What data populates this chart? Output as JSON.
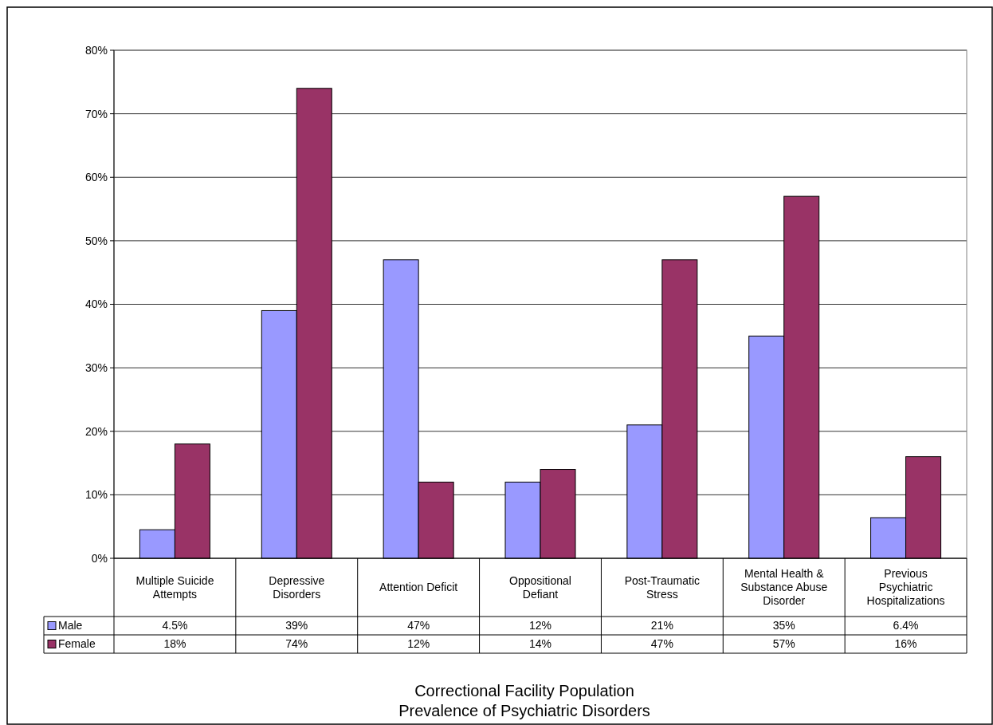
{
  "chart_data": {
    "type": "bar",
    "title": "Correctional Facility Population\nPrevalence of Psychiatric Disorders",
    "categories": [
      "Multiple Suicide Attempts",
      "Depressive Disorders",
      "Attention Deficit",
      "Oppositional Defiant",
      "Post-Traumatic Stress",
      "Mental Health & Substance Abuse Disorder",
      "Previous Psychiatric Hospitalizations"
    ],
    "series": [
      {
        "name": "Male",
        "color": "#9999ff",
        "values": [
          4.5,
          39,
          47,
          12,
          21,
          35,
          6.4
        ],
        "value_labels": [
          "4.5%",
          "39%",
          "47%",
          "12%",
          "21%",
          "35%",
          "6.4%"
        ]
      },
      {
        "name": "Female",
        "color": "#993366",
        "values": [
          18,
          74,
          12,
          14,
          47,
          57,
          16
        ],
        "value_labels": [
          "18%",
          "74%",
          "12%",
          "14%",
          "47%",
          "57%",
          "16%"
        ]
      }
    ],
    "ylim": [
      0,
      80
    ],
    "yticks": [
      {
        "value": 0,
        "label": "0%"
      },
      {
        "value": 10,
        "label": "10%"
      },
      {
        "value": 20,
        "label": "20%"
      },
      {
        "value": 30,
        "label": "30%"
      },
      {
        "value": 40,
        "label": "40%"
      },
      {
        "value": 50,
        "label": "50%"
      },
      {
        "value": 60,
        "label": "60%"
      },
      {
        "value": 70,
        "label": "70%"
      },
      {
        "value": 80,
        "label": "80%"
      }
    ],
    "grid": "y",
    "legend": "bottom left"
  }
}
